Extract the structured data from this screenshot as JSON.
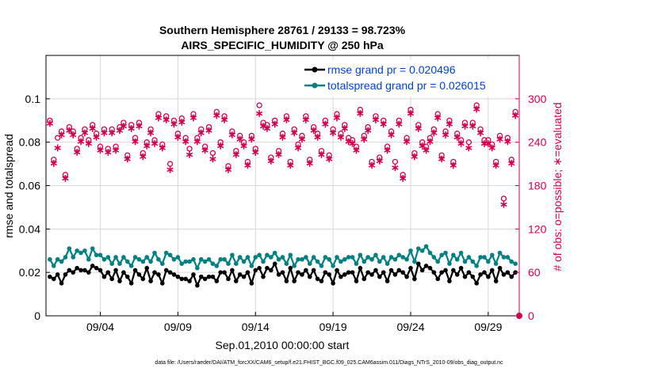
{
  "chart_data": {
    "type": "line",
    "title_line1": "Southern Hemisphere 28761 / 29133 = 98.723%",
    "title_line2": "AIRS_SPECIFIC_HUMIDITY @ 250 hPa",
    "xlabel": "Sep.01,2010 00:00:00 start",
    "ylabel_left": "rmse and totalspread",
    "ylabel_right": "# of obs: o=possible; ∗=evaluated",
    "footnote": "data file: /Users/raeder/DAI/ATM_forcXX/CAM6_setup/f.e21.FHIST_BGC.f09_025.CAM6assim.011/Diags_NTrS_2010-09/obs_diag_output.nc",
    "x_range": [
      0,
      30.5
    ],
    "x_ticks": [
      {
        "x": 3.5,
        "label": "09/04"
      },
      {
        "x": 8.5,
        "label": "09/09"
      },
      {
        "x": 13.5,
        "label": "09/14"
      },
      {
        "x": 18.5,
        "label": "09/19"
      },
      {
        "x": 23.5,
        "label": "09/24"
      },
      {
        "x": 28.5,
        "label": "09/29"
      }
    ],
    "y_left_range": [
      0,
      0.12
    ],
    "y_left_ticks": [
      {
        "v": 0,
        "label": "0"
      },
      {
        "v": 0.02,
        "label": "0.02"
      },
      {
        "v": 0.04,
        "label": "0.04"
      },
      {
        "v": 0.06,
        "label": "0.06"
      },
      {
        "v": 0.08,
        "label": "0.08"
      },
      {
        "v": 0.1,
        "label": "0.1"
      }
    ],
    "y_right_range": [
      0,
      360
    ],
    "y_right_ticks": [
      {
        "v": 0,
        "label": "0"
      },
      {
        "v": 60,
        "label": "60"
      },
      {
        "v": 120,
        "label": "120"
      },
      {
        "v": 180,
        "label": "180"
      },
      {
        "v": 240,
        "label": "240"
      },
      {
        "v": 300,
        "label": "300"
      }
    ],
    "grid": true,
    "legend_position": "top-right",
    "colors": {
      "rmse": "#000000",
      "spread": "#008080",
      "obs": "#d1004f",
      "legend_text": "#0044cc",
      "grid": "#d8d8d8"
    },
    "series": [
      {
        "name": "rmse grand pr = 0.020496",
        "key": "rmse",
        "x": [
          0.25,
          0.5,
          0.75,
          1,
          1.25,
          1.5,
          1.75,
          2,
          2.25,
          2.5,
          2.75,
          3,
          3.25,
          3.5,
          3.75,
          4,
          4.25,
          4.5,
          4.75,
          5,
          5.25,
          5.5,
          5.75,
          6,
          6.25,
          6.5,
          6.75,
          7,
          7.25,
          7.5,
          7.75,
          8,
          8.25,
          8.5,
          8.75,
          9,
          9.25,
          9.5,
          9.75,
          10,
          10.25,
          10.5,
          10.75,
          11,
          11.25,
          11.5,
          11.75,
          12,
          12.25,
          12.5,
          12.75,
          13,
          13.25,
          13.5,
          13.75,
          14,
          14.25,
          14.5,
          14.75,
          15,
          15.25,
          15.5,
          15.75,
          16,
          16.25,
          16.5,
          16.75,
          17,
          17.25,
          17.5,
          17.75,
          18,
          18.25,
          18.5,
          18.75,
          19,
          19.25,
          19.5,
          19.75,
          20,
          20.25,
          20.5,
          20.75,
          21,
          21.25,
          21.5,
          21.75,
          22,
          22.25,
          22.5,
          22.75,
          23,
          23.25,
          23.5,
          23.75,
          24,
          24.25,
          24.5,
          24.75,
          25,
          25.25,
          25.5,
          25.75,
          26,
          26.25,
          26.5,
          26.75,
          27,
          27.25,
          27.5,
          27.75,
          28,
          28.25,
          28.5,
          28.75,
          29,
          29.25,
          29.5,
          29.75,
          30,
          30.25
        ],
        "values": [
          0.018,
          0.017,
          0.019,
          0.015,
          0.019,
          0.021,
          0.02,
          0.022,
          0.021,
          0.021,
          0.02,
          0.023,
          0.022,
          0.021,
          0.018,
          0.02,
          0.017,
          0.021,
          0.016,
          0.02,
          0.018,
          0.015,
          0.021,
          0.019,
          0.017,
          0.022,
          0.016,
          0.02,
          0.019,
          0.015,
          0.021,
          0.02,
          0.019,
          0.018,
          0.017,
          0.017,
          0.016,
          0.019,
          0.014,
          0.018,
          0.017,
          0.018,
          0.018,
          0.016,
          0.02,
          0.02,
          0.017,
          0.021,
          0.016,
          0.019,
          0.018,
          0.02,
          0.015,
          0.021,
          0.022,
          0.018,
          0.022,
          0.021,
          0.024,
          0.019,
          0.02,
          0.016,
          0.022,
          0.016,
          0.02,
          0.019,
          0.021,
          0.018,
          0.021,
          0.017,
          0.016,
          0.02,
          0.019,
          0.015,
          0.021,
          0.018,
          0.019,
          0.02,
          0.02,
          0.016,
          0.022,
          0.017,
          0.02,
          0.019,
          0.021,
          0.018,
          0.02,
          0.016,
          0.021,
          0.019,
          0.021,
          0.02,
          0.018,
          0.022,
          0.017,
          0.024,
          0.021,
          0.023,
          0.022,
          0.02,
          0.017,
          0.02,
          0.021,
          0.016,
          0.021,
          0.019,
          0.022,
          0.018,
          0.02,
          0.018,
          0.015,
          0.019,
          0.02,
          0.018,
          0.021,
          0.016,
          0.022,
          0.019,
          0.02,
          0.018,
          0.02
        ]
      },
      {
        "name": "totalspread grand pr = 0.026015",
        "key": "spread",
        "x": [
          0.25,
          0.5,
          0.75,
          1,
          1.25,
          1.5,
          1.75,
          2,
          2.25,
          2.5,
          2.75,
          3,
          3.25,
          3.5,
          3.75,
          4,
          4.25,
          4.5,
          4.75,
          5,
          5.25,
          5.5,
          5.75,
          6,
          6.25,
          6.5,
          6.75,
          7,
          7.25,
          7.5,
          7.75,
          8,
          8.25,
          8.5,
          8.75,
          9,
          9.25,
          9.5,
          9.75,
          10,
          10.25,
          10.5,
          10.75,
          11,
          11.25,
          11.5,
          11.75,
          12,
          12.25,
          12.5,
          12.75,
          13,
          13.25,
          13.5,
          13.75,
          14,
          14.25,
          14.5,
          14.75,
          15,
          15.25,
          15.5,
          15.75,
          16,
          16.25,
          16.5,
          16.75,
          17,
          17.25,
          17.5,
          17.75,
          18,
          18.25,
          18.5,
          18.75,
          19,
          19.25,
          19.5,
          19.75,
          20,
          20.25,
          20.5,
          20.75,
          21,
          21.25,
          21.5,
          21.75,
          22,
          22.25,
          22.5,
          22.75,
          23,
          23.25,
          23.5,
          23.75,
          24,
          24.25,
          24.5,
          24.75,
          25,
          25.25,
          25.5,
          25.75,
          26,
          26.25,
          26.5,
          26.75,
          27,
          27.25,
          27.5,
          27.75,
          28,
          28.25,
          28.5,
          28.75,
          29,
          29.25,
          29.5,
          29.75,
          30,
          30.25
        ],
        "values": [
          0.026,
          0.023,
          0.026,
          0.025,
          0.027,
          0.031,
          0.027,
          0.03,
          0.029,
          0.03,
          0.026,
          0.031,
          0.028,
          0.028,
          0.026,
          0.027,
          0.024,
          0.027,
          0.024,
          0.027,
          0.025,
          0.023,
          0.027,
          0.026,
          0.025,
          0.027,
          0.025,
          0.029,
          0.026,
          0.024,
          0.029,
          0.028,
          0.026,
          0.027,
          0.024,
          0.025,
          0.025,
          0.026,
          0.022,
          0.026,
          0.025,
          0.026,
          0.024,
          0.023,
          0.026,
          0.026,
          0.024,
          0.028,
          0.024,
          0.027,
          0.025,
          0.027,
          0.023,
          0.027,
          0.028,
          0.025,
          0.028,
          0.027,
          0.029,
          0.026,
          0.027,
          0.024,
          0.028,
          0.023,
          0.026,
          0.026,
          0.027,
          0.024,
          0.027,
          0.025,
          0.023,
          0.027,
          0.026,
          0.023,
          0.027,
          0.025,
          0.026,
          0.027,
          0.027,
          0.024,
          0.028,
          0.025,
          0.027,
          0.026,
          0.028,
          0.025,
          0.027,
          0.024,
          0.027,
          0.026,
          0.028,
          0.027,
          0.026,
          0.03,
          0.025,
          0.031,
          0.03,
          0.032,
          0.029,
          0.027,
          0.025,
          0.028,
          0.029,
          0.024,
          0.028,
          0.026,
          0.029,
          0.025,
          0.027,
          0.025,
          0.023,
          0.027,
          0.027,
          0.025,
          0.028,
          0.024,
          0.029,
          0.027,
          0.027,
          0.025,
          0.024
        ]
      },
      {
        "name": "# obs possible",
        "key": "obs_possible",
        "x": [
          0.25,
          0.5,
          0.75,
          1,
          1.25,
          1.5,
          1.75,
          2,
          2.25,
          2.5,
          2.75,
          3,
          3.25,
          3.5,
          3.75,
          4,
          4.25,
          4.5,
          4.75,
          5,
          5.25,
          5.5,
          5.75,
          6,
          6.25,
          6.5,
          6.75,
          7,
          7.25,
          7.5,
          7.75,
          8,
          8.25,
          8.5,
          8.75,
          9,
          9.25,
          9.5,
          9.75,
          10,
          10.25,
          10.5,
          10.75,
          11,
          11.25,
          11.5,
          11.75,
          12,
          12.25,
          12.5,
          12.75,
          13,
          13.25,
          13.5,
          13.75,
          14,
          14.25,
          14.5,
          14.75,
          15,
          15.25,
          15.5,
          15.75,
          16,
          16.25,
          16.5,
          16.75,
          17,
          17.25,
          17.5,
          17.75,
          18,
          18.25,
          18.5,
          18.75,
          19,
          19.25,
          19.5,
          19.75,
          20,
          20.25,
          20.5,
          20.75,
          21,
          21.25,
          21.5,
          21.75,
          22,
          22.25,
          22.5,
          22.75,
          23,
          23.25,
          23.5,
          23.75,
          24,
          24.25,
          24.5,
          24.75,
          25,
          25.25,
          25.5,
          25.75,
          26,
          26.25,
          26.5,
          26.75,
          27,
          27.25,
          27.5,
          27.75,
          28,
          28.25,
          28.5,
          28.75,
          29,
          29.25,
          29.5,
          29.75,
          30,
          30.25
        ],
        "values": [
          270,
          216,
          246,
          255,
          195,
          261,
          255,
          231,
          246,
          258,
          243,
          264,
          252,
          234,
          258,
          231,
          258,
          234,
          261,
          267,
          222,
          264,
          246,
          267,
          225,
          240,
          258,
          243,
          279,
          237,
          276,
          210,
          270,
          252,
          273,
          246,
          231,
          279,
          246,
          258,
          234,
          261,
          225,
          282,
          240,
          276,
          207,
          255,
          228,
          249,
          240,
          213,
          249,
          231,
          291,
          267,
          264,
          219,
          270,
          228,
          252,
          276,
          213,
          258,
          237,
          249,
          276,
          216,
          261,
          252,
          228,
          270,
          222,
          258,
          279,
          252,
          264,
          246,
          243,
          234,
          285,
          249,
          261,
          213,
          276,
          219,
          270,
          234,
          255,
          213,
          270,
          195,
          246,
          285,
          225,
          264,
          240,
          234,
          246,
          258,
          279,
          222,
          255,
          270,
          213,
          252,
          243,
          267,
          240,
          267,
          291,
          258,
          243,
          243,
          237,
          213,
          249,
          162,
          246,
          216,
          282
        ]
      },
      {
        "name": "# obs evaluated",
        "key": "obs_evaluated",
        "x": [
          0.25,
          0.5,
          0.75,
          1,
          1.25,
          1.5,
          1.75,
          2,
          2.25,
          2.5,
          2.75,
          3,
          3.25,
          3.5,
          3.75,
          4,
          4.25,
          4.5,
          4.75,
          5,
          5.25,
          5.5,
          5.75,
          6,
          6.25,
          6.5,
          6.75,
          7,
          7.25,
          7.5,
          7.75,
          8,
          8.25,
          8.5,
          8.75,
          9,
          9.25,
          9.5,
          9.75,
          10,
          10.25,
          10.5,
          10.75,
          11,
          11.25,
          11.5,
          11.75,
          12,
          12.25,
          12.5,
          12.75,
          13,
          13.25,
          13.5,
          13.75,
          14,
          14.25,
          14.5,
          14.75,
          15,
          15.25,
          15.5,
          15.75,
          16,
          16.25,
          16.5,
          16.75,
          17,
          17.25,
          17.5,
          17.75,
          18,
          18.25,
          18.5,
          18.75,
          19,
          19.25,
          19.5,
          19.75,
          20,
          20.25,
          20.5,
          20.75,
          21,
          21.25,
          21.5,
          21.75,
          22,
          22.25,
          22.5,
          22.75,
          23,
          23.25,
          23.5,
          23.75,
          24,
          24.25,
          24.5,
          24.75,
          25,
          25.25,
          25.5,
          25.75,
          26,
          26.25,
          26.5,
          26.75,
          27,
          27.25,
          27.5,
          27.75,
          28,
          28.25,
          28.5,
          28.75,
          29,
          29.25,
          29.5,
          29.75,
          30,
          30.25
        ],
        "values": [
          268,
          213,
          234,
          252,
          192,
          258,
          252,
          228,
          243,
          255,
          240,
          261,
          249,
          231,
          255,
          228,
          255,
          231,
          258,
          264,
          219,
          261,
          243,
          264,
          222,
          237,
          255,
          240,
          276,
          234,
          273,
          204,
          267,
          249,
          270,
          243,
          225,
          276,
          243,
          255,
          231,
          258,
          219,
          279,
          237,
          273,
          204,
          252,
          225,
          246,
          237,
          210,
          246,
          228,
          282,
          264,
          261,
          216,
          267,
          225,
          249,
          273,
          210,
          255,
          234,
          246,
          273,
          213,
          258,
          249,
          225,
          267,
          219,
          255,
          276,
          249,
          261,
          243,
          240,
          231,
          282,
          246,
          258,
          210,
          273,
          216,
          267,
          231,
          252,
          207,
          267,
          192,
          243,
          282,
          222,
          261,
          237,
          231,
          243,
          255,
          276,
          219,
          252,
          267,
          210,
          249,
          240,
          264,
          234,
          264,
          288,
          255,
          240,
          240,
          234,
          210,
          246,
          156,
          243,
          213,
          279
        ]
      }
    ]
  }
}
